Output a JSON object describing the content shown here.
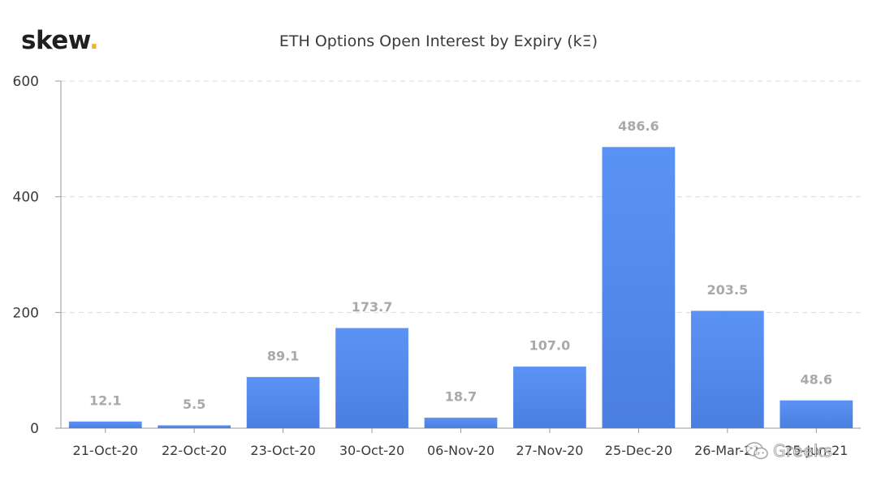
{
  "brand": {
    "name": "skew",
    "dot": "."
  },
  "chart_data": {
    "type": "bar",
    "title": "ETH Options Open Interest by Expiry (kΞ)",
    "xlabel": "",
    "ylabel": "",
    "categories": [
      "21-Oct-20",
      "22-Oct-20",
      "23-Oct-20",
      "30-Oct-20",
      "06-Nov-20",
      "27-Nov-20",
      "25-Dec-20",
      "26-Mar-21",
      "25-Jun-21"
    ],
    "values": [
      12.1,
      5.5,
      89.1,
      173.7,
      18.7,
      107.0,
      486.6,
      203.5,
      48.6
    ],
    "data_labels": [
      "12.1",
      "5.5",
      "89.1",
      "173.7",
      "18.7",
      "107.0",
      "486.6",
      "203.5",
      "48.6"
    ],
    "ylim": [
      0,
      600
    ],
    "yticks": [
      0,
      200,
      400,
      600
    ],
    "grid": true,
    "legend": "none",
    "colors": {
      "bar_top": "#5b93f5",
      "bar_bottom": "#4a7fe0",
      "data_label": "#a9a9a9",
      "axis_text": "#3a3a3a",
      "grid": "#dcdcdc"
    }
  },
  "watermark": {
    "text": "Greeks",
    "icon": "wechat-icon"
  }
}
